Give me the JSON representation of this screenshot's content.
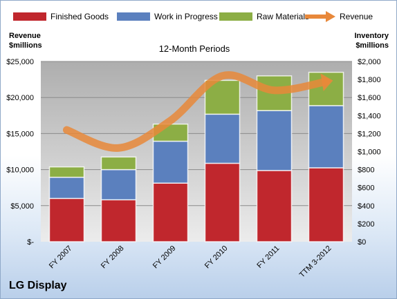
{
  "company": "LG Display",
  "chart_data": {
    "type": "bar",
    "stacked": true,
    "title": "12-Month Periods",
    "categories": [
      "FY 2007",
      "FY 2008",
      "FY 2009",
      "FY 2010",
      "FY 2011",
      "TTM 3-2012"
    ],
    "left_axis": {
      "label_line1": "Revenue",
      "label_line2": "$millions",
      "range": [
        0,
        25000
      ],
      "ticks": [
        "$-",
        "$5,000",
        "$10,000",
        "$15,000",
        "$20,000",
        "$25,000"
      ]
    },
    "right_axis": {
      "label_line1": "Inventory",
      "label_line2": "$millions",
      "range": [
        0,
        2000
      ],
      "ticks": [
        "$0",
        "$200",
        "$400",
        "$600",
        "$800",
        "$1,000",
        "$1,200",
        "$1,400",
        "$1,600",
        "$1,800",
        "$2,000"
      ]
    },
    "series": [
      {
        "name": "Finished Goods",
        "axis": "right",
        "kind": "bar",
        "color": "#c0272d",
        "values": [
          480,
          465,
          650,
          870,
          790,
          820
        ]
      },
      {
        "name": "Work in Progress",
        "axis": "right",
        "kind": "bar",
        "color": "#5b80be",
        "values": [
          235,
          335,
          465,
          545,
          665,
          690
        ]
      },
      {
        "name": "Raw Materials",
        "axis": "right",
        "kind": "bar",
        "color": "#8cae45",
        "values": [
          115,
          140,
          190,
          375,
          385,
          370
        ]
      },
      {
        "name": "Revenue",
        "axis": "left",
        "kind": "line",
        "color": "#e8883a",
        "values": [
          15500,
          13000,
          16800,
          23000,
          21000,
          22200
        ]
      }
    ],
    "grid": true,
    "legend_position": "top"
  }
}
